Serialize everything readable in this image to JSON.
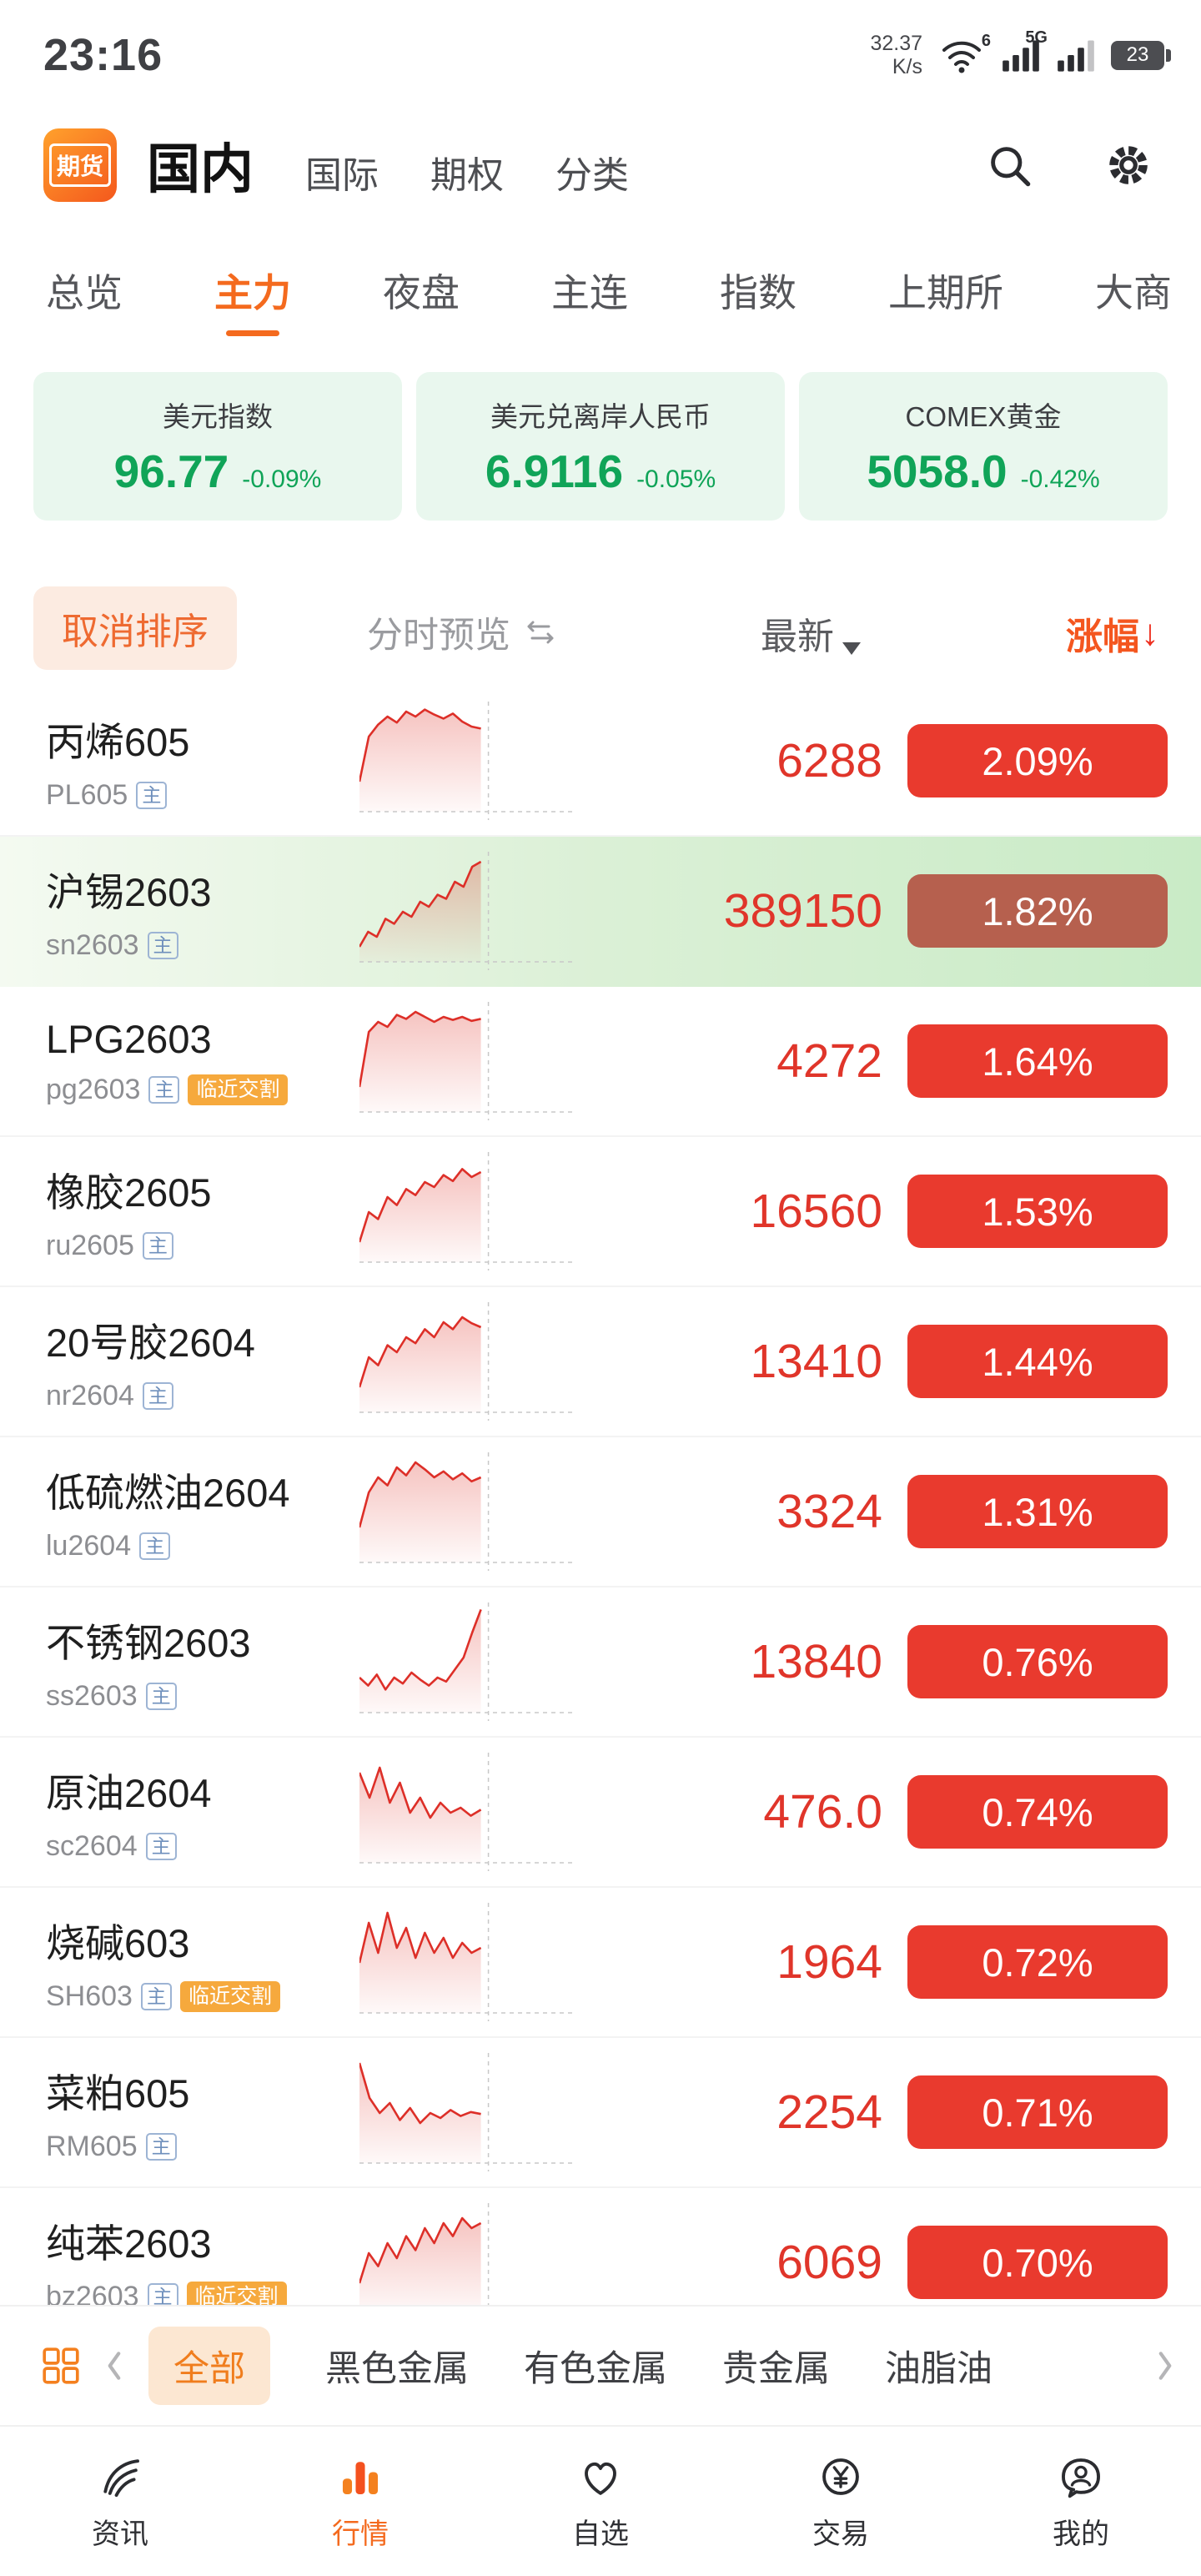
{
  "status_bar": {
    "time": "23:16",
    "speed_value": "32.37",
    "speed_unit": "K/s",
    "wifi_gen": "6",
    "network": "5G",
    "battery": "23"
  },
  "header": {
    "logo": "期货",
    "nav": [
      {
        "label": "国内",
        "active": true
      },
      {
        "label": "国际",
        "active": false
      },
      {
        "label": "期权",
        "active": false
      },
      {
        "label": "分类",
        "active": false
      }
    ]
  },
  "tabs": {
    "items": [
      {
        "label": "总览",
        "active": false
      },
      {
        "label": "主力",
        "active": true
      },
      {
        "label": "夜盘",
        "active": false
      },
      {
        "label": "主连",
        "active": false
      },
      {
        "label": "指数",
        "active": false
      },
      {
        "label": "上期所",
        "active": false
      },
      {
        "label": "大商",
        "active": false
      }
    ]
  },
  "index_cards": [
    {
      "name": "美元指数",
      "value": "96.77",
      "change": "-0.09%"
    },
    {
      "name": "美元兑离岸人民币",
      "value": "6.9116",
      "change": "-0.05%"
    },
    {
      "name": "COMEX黄金",
      "value": "5058.0",
      "change": "-0.42%"
    }
  ],
  "sort_bar": {
    "cancel_label": "取消排序",
    "preview_label": "分时预览",
    "latest_label": "最新",
    "change_label": "涨幅",
    "change_arrow": "↓"
  },
  "labels": {
    "main_badge": "主",
    "near_badge": "临近交割"
  },
  "rows": [
    {
      "name": "丙烯605",
      "code": "PL605",
      "main": true,
      "near": false,
      "price": "6288",
      "change": "2.09%",
      "highlight": false,
      "spark": [
        0.25,
        0.7,
        0.82,
        0.9,
        0.84,
        0.95,
        0.9,
        0.97,
        0.92,
        0.88,
        0.93,
        0.85,
        0.8,
        0.78
      ]
    },
    {
      "name": "沪锡2603",
      "code": "sn2603",
      "main": true,
      "near": false,
      "price": "389150",
      "change": "1.82%",
      "highlight": true,
      "spark": [
        0.1,
        0.25,
        0.2,
        0.38,
        0.33,
        0.45,
        0.4,
        0.55,
        0.5,
        0.62,
        0.58,
        0.75,
        0.7,
        0.9,
        0.95
      ]
    },
    {
      "name": "LPG2603",
      "code": "pg2603",
      "main": true,
      "near": true,
      "price": "4272",
      "change": "1.64%",
      "highlight": false,
      "spark": [
        0.2,
        0.75,
        0.85,
        0.8,
        0.92,
        0.88,
        0.95,
        0.9,
        0.85,
        0.9,
        0.87,
        0.9,
        0.86,
        0.88
      ]
    },
    {
      "name": "橡胶2605",
      "code": "ru2605",
      "main": true,
      "near": false,
      "price": "16560",
      "change": "1.53%",
      "highlight": false,
      "spark": [
        0.15,
        0.45,
        0.38,
        0.6,
        0.52,
        0.68,
        0.62,
        0.75,
        0.7,
        0.82,
        0.76,
        0.88,
        0.8,
        0.85
      ]
    },
    {
      "name": "20号胶2604",
      "code": "nr2604",
      "main": true,
      "near": false,
      "price": "13410",
      "change": "1.44%",
      "highlight": false,
      "spark": [
        0.2,
        0.5,
        0.42,
        0.62,
        0.55,
        0.7,
        0.64,
        0.78,
        0.7,
        0.85,
        0.78,
        0.9,
        0.84,
        0.8
      ]
    },
    {
      "name": "低硫燃油2604",
      "code": "lu2604",
      "main": true,
      "near": false,
      "price": "3324",
      "change": "1.31%",
      "highlight": false,
      "spark": [
        0.3,
        0.65,
        0.8,
        0.72,
        0.9,
        0.82,
        0.95,
        0.88,
        0.8,
        0.86,
        0.78,
        0.84,
        0.76,
        0.8
      ]
    },
    {
      "name": "不锈钢2603",
      "code": "ss2603",
      "main": true,
      "near": false,
      "price": "13840",
      "change": "0.76%",
      "highlight": false,
      "spark": [
        0.3,
        0.22,
        0.33,
        0.18,
        0.3,
        0.24,
        0.35,
        0.28,
        0.22,
        0.3,
        0.26,
        0.38,
        0.5,
        0.75,
        0.98
      ]
    },
    {
      "name": "原油2604",
      "code": "sc2604",
      "main": true,
      "near": false,
      "price": "476.0",
      "change": "0.74%",
      "highlight": false,
      "spark": [
        0.85,
        0.6,
        0.9,
        0.55,
        0.75,
        0.45,
        0.6,
        0.4,
        0.55,
        0.45,
        0.5,
        0.42,
        0.48
      ]
    },
    {
      "name": "烧碱603",
      "code": "SH603",
      "main": true,
      "near": true,
      "price": "1964",
      "change": "0.72%",
      "highlight": false,
      "spark": [
        0.45,
        0.85,
        0.55,
        0.95,
        0.6,
        0.8,
        0.5,
        0.75,
        0.55,
        0.7,
        0.5,
        0.65,
        0.55,
        0.6
      ]
    },
    {
      "name": "菜粕605",
      "code": "RM605",
      "main": true,
      "near": false,
      "price": "2254",
      "change": "0.71%",
      "highlight": false,
      "spark": [
        0.95,
        0.6,
        0.45,
        0.55,
        0.38,
        0.5,
        0.35,
        0.45,
        0.4,
        0.48,
        0.42,
        0.46,
        0.44
      ]
    },
    {
      "name": "纯苯2603",
      "code": "bz2603",
      "main": true,
      "near": true,
      "price": "6069",
      "change": "0.70%",
      "highlight": false,
      "spark": [
        0.25,
        0.55,
        0.42,
        0.65,
        0.5,
        0.72,
        0.58,
        0.8,
        0.65,
        0.85,
        0.72,
        0.9,
        0.8,
        0.85
      ]
    }
  ],
  "category_bar": {
    "items": [
      {
        "label": "全部",
        "active": true
      },
      {
        "label": "黑色金属",
        "active": false
      },
      {
        "label": "有色金属",
        "active": false
      },
      {
        "label": "贵金属",
        "active": false
      },
      {
        "label": "油脂油",
        "active": false
      }
    ]
  },
  "bottom_nav": [
    {
      "label": "资讯",
      "active": false
    },
    {
      "label": "行情",
      "active": true
    },
    {
      "label": "自选",
      "active": false
    },
    {
      "label": "交易",
      "active": false
    },
    {
      "label": "我的",
      "active": false
    }
  ],
  "colors": {
    "accent_orange": "#f46a1e",
    "up_red": "#e93a2e",
    "green": "#10a458",
    "near_badge_orange": "#f6a93d",
    "highlight_green": "#d7efd3"
  }
}
